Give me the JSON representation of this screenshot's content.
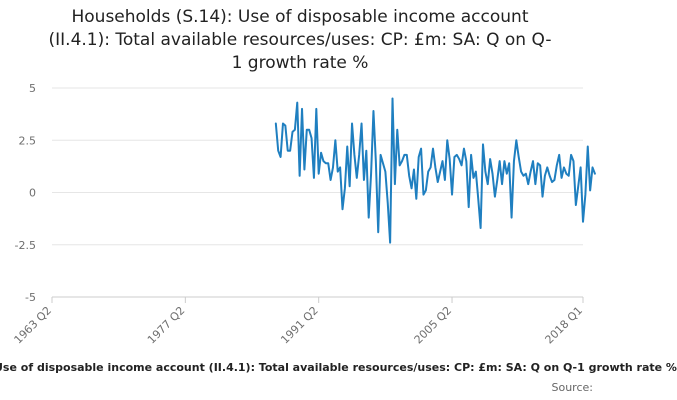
{
  "chart_data": {
    "type": "line",
    "title_lines": [
      "Households (S.14): Use of disposable income account",
      "(II.4.1): Total available resources/uses: CP: £m: SA: Q on Q-",
      "1 growth rate %"
    ],
    "xlabel": "",
    "ylabel": "",
    "ylim": [
      -5,
      5
    ],
    "yticks": [
      "5",
      "2.5",
      "0",
      "-2.5",
      "-5"
    ],
    "ytick_values": [
      5,
      2.5,
      0,
      -2.5,
      -5
    ],
    "xticks": [
      "1963 Q2",
      "1977 Q2",
      "1991 Q2",
      "2005 Q2",
      "2018 Q1"
    ],
    "xtick_indices": [
      0,
      56,
      112,
      168,
      223
    ],
    "x_start_index": 94,
    "grid": true,
    "line_color": "#1f7fc0",
    "series": [
      {
        "values": [
          3.3,
          2.0,
          1.7,
          3.3,
          3.2,
          2.0,
          2.0,
          2.9,
          3.0,
          4.3,
          0.8,
          4.0,
          1.1,
          3.0,
          3.0,
          2.6,
          0.7,
          4.0,
          0.9,
          1.9,
          1.5,
          1.4,
          1.4,
          0.6,
          1.2,
          2.5,
          1.0,
          1.2,
          -0.8,
          0.2,
          2.2,
          0.3,
          3.3,
          1.8,
          0.7,
          1.8,
          3.3,
          0.6,
          2.0,
          -1.2,
          0.9,
          3.9,
          1.5,
          -1.9,
          1.8,
          1.4,
          1.0,
          -0.5,
          -2.4,
          4.5,
          0.4,
          3.0,
          1.3,
          1.5,
          1.8,
          1.8,
          0.8,
          0.2,
          1.1,
          -0.3,
          1.7,
          2.1,
          -0.1,
          0.1,
          1.0,
          1.2,
          2.1,
          1.2,
          0.5,
          1.0,
          1.5,
          0.6,
          2.5,
          1.6,
          -0.1,
          1.7,
          1.8,
          1.6,
          1.3,
          2.1,
          1.5,
          -0.7,
          1.8,
          0.7,
          1.0,
          -0.3,
          -1.7,
          2.3,
          1.0,
          0.4,
          1.6,
          0.9,
          -0.2,
          0.6,
          1.5,
          0.4,
          1.5,
          0.9,
          1.4,
          -1.2,
          1.5,
          2.5,
          1.7,
          1.0,
          0.8,
          0.9,
          0.4,
          1.0,
          1.5,
          0.4,
          1.4,
          1.3,
          -0.2,
          0.8,
          1.2,
          0.8,
          0.5,
          0.6,
          1.3,
          1.8,
          0.7,
          1.2,
          0.9,
          0.8,
          1.8,
          1.5,
          -0.6,
          0.3,
          1.2,
          -1.4,
          -0.1,
          2.2,
          0.1,
          1.2,
          0.9
        ]
      }
    ]
  },
  "footer": {
    "series_label": "Use of disposable income account (II.4.1): Total available resources/uses: CP: £m: SA: Q on Q-1 growth rate %",
    "source_label": "Source:"
  }
}
